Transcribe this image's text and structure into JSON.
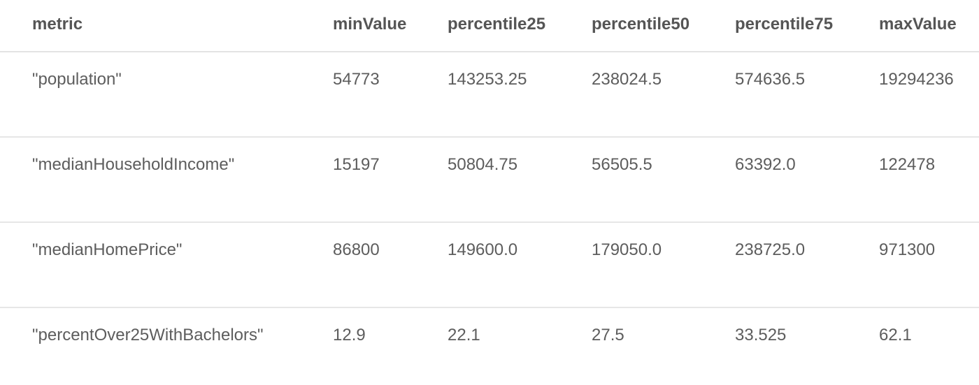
{
  "table": {
    "columns": [
      "metric",
      "minValue",
      "percentile25",
      "percentile50",
      "percentile75",
      "maxValue"
    ],
    "rows": [
      [
        "\"population\"",
        "54773",
        "143253.25",
        "238024.5",
        "574636.5",
        "19294236"
      ],
      [
        "\"medianHouseholdIncome\"",
        "15197",
        "50804.75",
        "56505.5",
        "63392.0",
        "122478"
      ],
      [
        "\"medianHomePrice\"",
        "86800",
        "149600.0",
        "179050.0",
        "238725.0",
        "971300"
      ],
      [
        "\"percentOver25WithBachelors\"",
        "12.9",
        "22.1",
        "27.5",
        "33.525",
        "62.1"
      ]
    ]
  }
}
